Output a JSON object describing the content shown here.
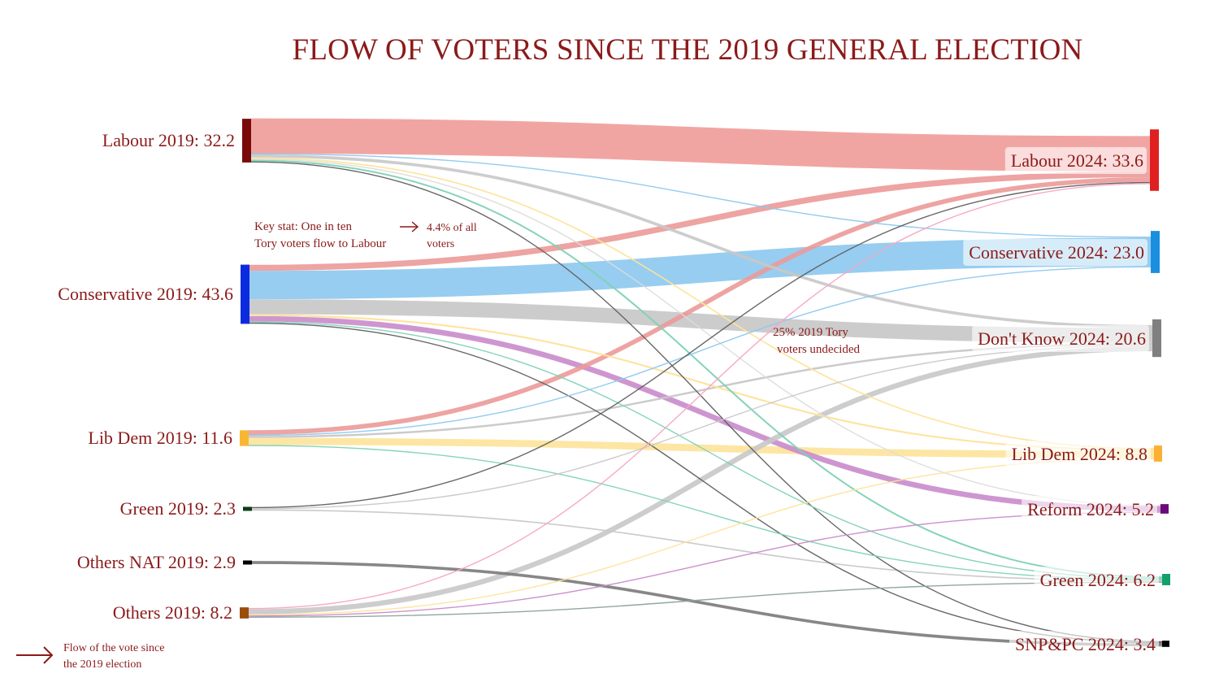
{
  "chart_data": {
    "type": "sankey",
    "title": "FLOW OF VOTERS SINCE THE 2019 GENERAL ELECTION",
    "sources": [
      {
        "id": "lab19",
        "name": "Labour 2019",
        "value": 32.2,
        "label": "Labour 2019: 32.2",
        "color": "#7a0a0a"
      },
      {
        "id": "con19",
        "name": "Conservative 2019",
        "value": 43.6,
        "label": "Conservative 2019: 43.6",
        "color": "#0a2be0"
      },
      {
        "id": "ld19",
        "name": "Lib Dem 2019",
        "value": 11.6,
        "label": "Lib Dem 2019: 11.6",
        "color": "#f7b733"
      },
      {
        "id": "grn19",
        "name": "Green 2019",
        "value": 2.3,
        "label": "Green 2019: 2.3",
        "color": "#0b3d1a"
      },
      {
        "id": "nat19",
        "name": "Others NAT 2019",
        "value": 2.9,
        "label": "Others NAT 2019: 2.9",
        "color": "#000000"
      },
      {
        "id": "oth19",
        "name": "Others 2019",
        "value": 8.2,
        "label": "Others 2019: 8.2",
        "color": "#9a4e0a"
      }
    ],
    "targets": [
      {
        "id": "lab24",
        "name": "Labour 2024",
        "value": 33.6,
        "label": "Labour 2024: 33.6",
        "color": "#e02020"
      },
      {
        "id": "con24",
        "name": "Conservative 2024",
        "value": 23.0,
        "label": "Conservative 2024: 23.0",
        "color": "#1a8fe0"
      },
      {
        "id": "dk24",
        "name": "Don't Know 2024",
        "value": 20.6,
        "label": "Don't Know 2024: 20.6",
        "color": "#808080"
      },
      {
        "id": "ld24",
        "name": "Lib Dem 2024",
        "value": 8.8,
        "label": "Lib Dem 2024: 8.8",
        "color": "#fbb034"
      },
      {
        "id": "ref24",
        "name": "Reform 2024",
        "value": 5.2,
        "label": "Reform 2024: 5.2",
        "color": "#6a0a7a"
      },
      {
        "id": "grn24",
        "name": "Green 2024",
        "value": 6.2,
        "label": "Green 2024: 6.2",
        "color": "#12a06a"
      },
      {
        "id": "snp24",
        "name": "SNP&PC 2024",
        "value": 3.4,
        "label": "SNP&PC 2024: 3.4",
        "color": "#000000"
      }
    ],
    "flows": [
      {
        "source": "lab19",
        "target": "lab24",
        "value": 26.0,
        "color": "#f09b98"
      },
      {
        "source": "lab19",
        "target": "dk24",
        "value": 2.2,
        "color": "#c8c8c8"
      },
      {
        "source": "lab19",
        "target": "grn24",
        "value": 1.2,
        "color": "#7fd1b6"
      },
      {
        "source": "lab19",
        "target": "ld24",
        "value": 1.0,
        "color": "#fde39a"
      },
      {
        "source": "lab19",
        "target": "con24",
        "value": 0.8,
        "color": "#8cc8ee"
      },
      {
        "source": "lab19",
        "target": "ref24",
        "value": 0.5,
        "color": "#dcdcdc"
      },
      {
        "source": "lab19",
        "target": "snp24",
        "value": 0.5,
        "color": "#5f5f5f"
      },
      {
        "source": "con19",
        "target": "lab24",
        "value": 4.4,
        "color": "#eb9a98"
      },
      {
        "source": "con19",
        "target": "con24",
        "value": 21.0,
        "color": "#8cc8ee"
      },
      {
        "source": "con19",
        "target": "dk24",
        "value": 11.0,
        "color": "#c6c6c6"
      },
      {
        "source": "con19",
        "target": "ld24",
        "value": 1.3,
        "color": "#fde39a"
      },
      {
        "source": "con19",
        "target": "ref24",
        "value": 4.0,
        "color": "#c98bcb"
      },
      {
        "source": "con19",
        "target": "grn24",
        "value": 0.6,
        "color": "#7fd1b6"
      },
      {
        "source": "con19",
        "target": "snp24",
        "value": 0.5,
        "color": "#5f5f5f"
      },
      {
        "source": "ld19",
        "target": "lab24",
        "value": 3.4,
        "color": "#eb9a98"
      },
      {
        "source": "ld19",
        "target": "con24",
        "value": 0.8,
        "color": "#8cc8ee"
      },
      {
        "source": "ld19",
        "target": "dk24",
        "value": 1.5,
        "color": "#c8c8c8"
      },
      {
        "source": "ld19",
        "target": "ld24",
        "value": 5.2,
        "color": "#fde39a"
      },
      {
        "source": "ld19",
        "target": "grn24",
        "value": 0.6,
        "color": "#7fd1b6"
      },
      {
        "source": "grn19",
        "target": "lab24",
        "value": 0.5,
        "color": "#5f5f5f"
      },
      {
        "source": "grn19",
        "target": "dk24",
        "value": 0.4,
        "color": "#c8c8c8"
      },
      {
        "source": "grn19",
        "target": "grn24",
        "value": 1.0,
        "color": "#c8c8c8"
      },
      {
        "source": "nat19",
        "target": "snp24",
        "value": 2.2,
        "color": "#7a7a7a"
      },
      {
        "source": "oth19",
        "target": "lab24",
        "value": 0.8,
        "color": "#f5a7c4"
      },
      {
        "source": "oth19",
        "target": "dk24",
        "value": 3.8,
        "color": "#c8c8c8"
      },
      {
        "source": "oth19",
        "target": "ld24",
        "value": 0.5,
        "color": "#fde39a"
      },
      {
        "source": "oth19",
        "target": "ref24",
        "value": 0.3,
        "color": "#c98bcb"
      },
      {
        "source": "oth19",
        "target": "grn24",
        "value": 0.6,
        "color": "#8aa39a"
      }
    ],
    "annotations": [
      {
        "name": "key-stat",
        "lines": [
          "Key stat: One in ten",
          "Tory voters flow to Labour"
        ]
      },
      {
        "name": "key-stat-share",
        "lines": [
          "4.4% of all",
          "voters"
        ]
      },
      {
        "name": "undecided-note",
        "lines": [
          "25% 2019 Tory",
          "voters undecided"
        ]
      }
    ],
    "legend": {
      "position": "bottom-left",
      "lines": [
        "Flow of the vote since",
        "the 2019 election"
      ],
      "color": "#8b1a1a"
    }
  }
}
